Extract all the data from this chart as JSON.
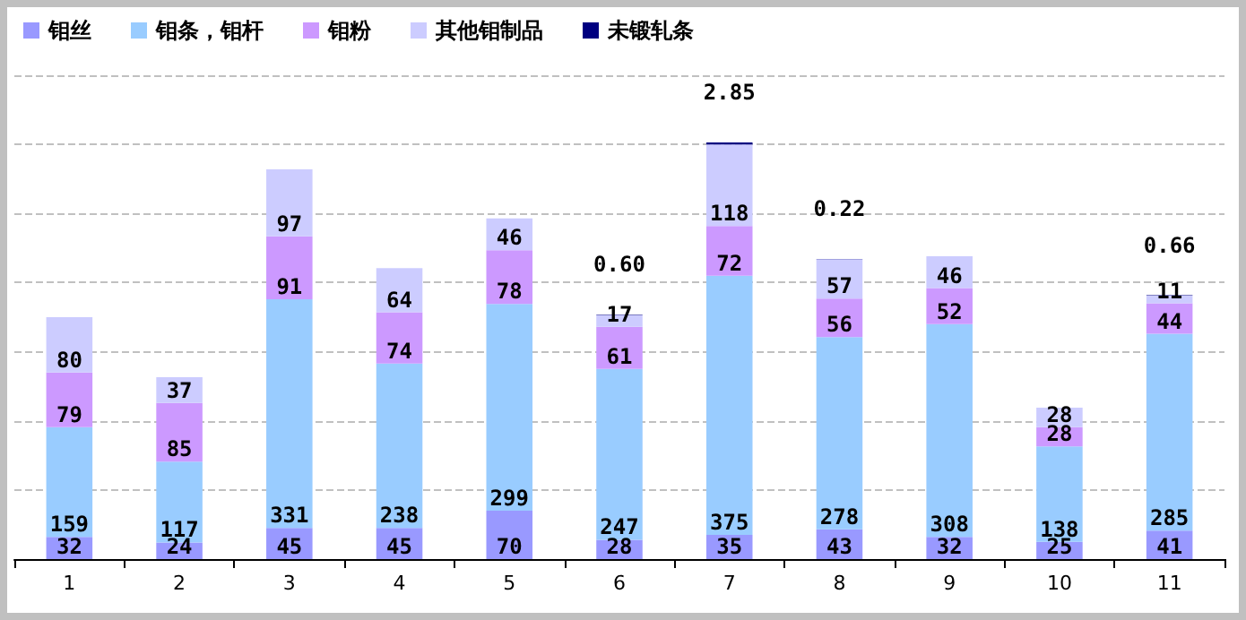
{
  "chart_data": {
    "type": "bar",
    "stacked": true,
    "data_labels": true,
    "grid": "y",
    "legend": "top left",
    "tick_labels": "x",
    "categories": [
      "1",
      "2",
      "3",
      "4",
      "5",
      "6",
      "7",
      "8",
      "9",
      "10",
      "11"
    ],
    "series": [
      {
        "name": "钼丝",
        "color": "#9999ff",
        "values": [
          32,
          24,
          45,
          45,
          70,
          28,
          35,
          43,
          32,
          25,
          41
        ]
      },
      {
        "name": "钼条，钼杆",
        "color": "#99ccff",
        "values": [
          159,
          117,
          331,
          238,
          299,
          247,
          375,
          278,
          308,
          138,
          285
        ]
      },
      {
        "name": "钼粉",
        "color": "#cc99ff",
        "values": [
          79,
          85,
          91,
          74,
          78,
          61,
          72,
          56,
          52,
          28,
          44
        ]
      },
      {
        "name": "其他钼制品",
        "color": "#ccccff",
        "values": [
          80,
          37,
          97,
          64,
          46,
          17,
          118,
          57,
          46,
          28,
          11
        ]
      },
      {
        "name": "未锻轧条",
        "color": "#000080",
        "values": [
          null,
          null,
          null,
          null,
          null,
          0.6,
          2.85,
          0.22,
          null,
          null,
          0.66
        ],
        "value_labels": [
          null,
          null,
          null,
          null,
          null,
          "0.60",
          "2.85",
          "0.22",
          null,
          null,
          "0.66"
        ]
      }
    ]
  }
}
